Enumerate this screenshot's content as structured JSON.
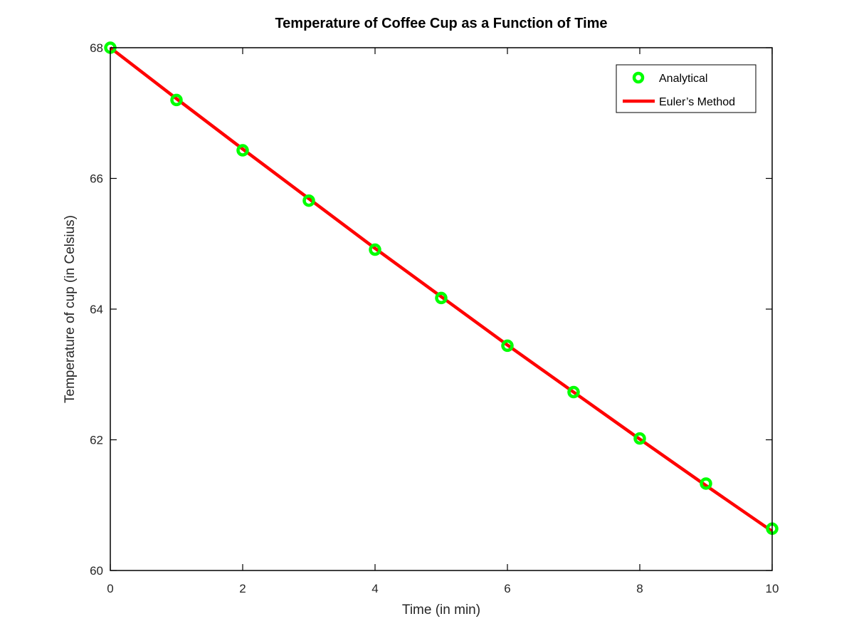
{
  "chart_data": {
    "type": "line",
    "title": "Temperature of Coffee Cup as a Function of Time",
    "xlabel": "Time (in min)",
    "ylabel": "Temperature of cup (in Celsius)",
    "xlim": [
      0,
      10
    ],
    "ylim": [
      60,
      68
    ],
    "xticks": [
      "0",
      "2",
      "4",
      "6",
      "8",
      "10"
    ],
    "yticks": [
      "60",
      "62",
      "64",
      "66",
      "68"
    ],
    "grid": false,
    "legend_position": "top-right",
    "series": [
      {
        "name": "Analytical",
        "style": "markers",
        "marker": "circle",
        "color": "#00ff00",
        "x": [
          0,
          1,
          2,
          3,
          4,
          5,
          6,
          7,
          8,
          9,
          10
        ],
        "y": [
          68.0,
          67.2,
          66.43,
          65.66,
          64.91,
          64.17,
          63.44,
          62.73,
          62.02,
          61.33,
          60.64
        ]
      },
      {
        "name": "Euler’s Method",
        "style": "line",
        "color": "#ff0000",
        "x": [
          0,
          1,
          2,
          3,
          4,
          5,
          6,
          7,
          8,
          9,
          10
        ],
        "y": [
          68.0,
          67.22,
          66.45,
          65.69,
          64.93,
          64.19,
          63.45,
          62.73,
          62.01,
          61.3,
          60.6
        ]
      }
    ]
  }
}
